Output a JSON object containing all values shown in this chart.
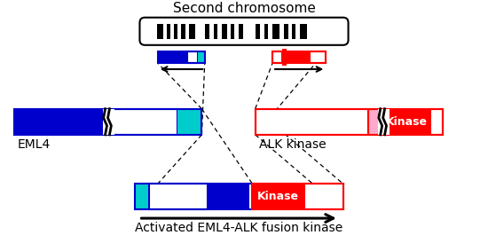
{
  "title": "Second chromosome",
  "subtitle": "Activated EML4-ALK fusion kinase",
  "bg_color": "#ffffff",
  "blue": "#0000cc",
  "red": "#ff0000",
  "cyan": "#00cccc",
  "pink": "#ffaacc",
  "white": "#ffffff",
  "black": "#000000"
}
